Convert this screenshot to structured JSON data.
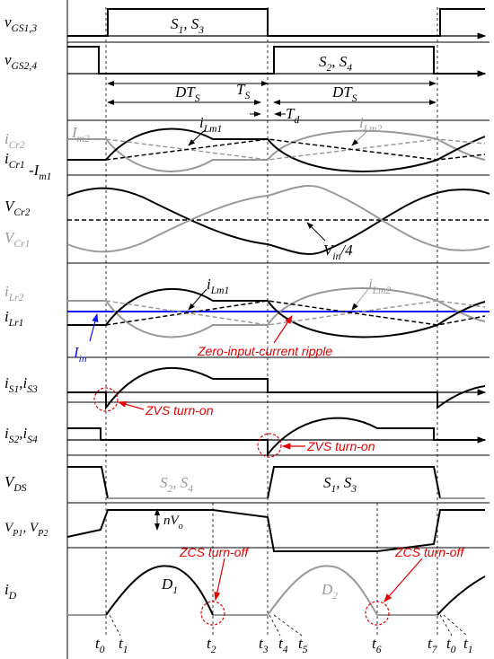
{
  "labels": {
    "vgs13": [
      "v",
      "GS1,3"
    ],
    "vgs24": [
      "v",
      "GS2,4"
    ],
    "s13_top": [
      "S",
      "1",
      ", S",
      "3"
    ],
    "s24_top": [
      "S",
      "2",
      ", S",
      "4"
    ],
    "dts_1": [
      "DT",
      "S"
    ],
    "ts": [
      "T",
      "S"
    ],
    "dts_2": [
      "DT",
      "S"
    ],
    "td": [
      "T",
      "d"
    ],
    "icr2": [
      "i",
      "Cr2"
    ],
    "im2": [
      "I",
      "m2"
    ],
    "icr1": [
      "i",
      "Cr1"
    ],
    "neg_im1": [
      "-I",
      "m1"
    ],
    "ilm1_a": [
      "i",
      "Lm1"
    ],
    "ilm2_a": [
      "i",
      "Lm2"
    ],
    "vcr2": [
      "V",
      "Cr2"
    ],
    "vcr1": [
      "V",
      "Cr1"
    ],
    "vin4": [
      "V",
      "in",
      "/4"
    ],
    "ilr2": [
      "i",
      "Lr2"
    ],
    "ilr1": [
      "i",
      "Lr1"
    ],
    "iin": [
      "I",
      "in"
    ],
    "ilm1_b": [
      "i",
      "Lm1"
    ],
    "ilm2_b": [
      "i",
      "Lm2"
    ],
    "ripple": [
      "Zero-input-current ripple"
    ],
    "is13": [
      "i",
      "S1",
      ",i",
      "S3"
    ],
    "zvs_1": [
      "ZVS turn-on"
    ],
    "is24": [
      "i",
      "S2",
      ",i",
      "S4"
    ],
    "zvs_2": [
      "ZVS turn-on"
    ],
    "vds": [
      "V",
      "DS"
    ],
    "s24_vds": [
      "S",
      "2",
      ", S",
      "4"
    ],
    "s13_vds": [
      "S",
      "1",
      ", S",
      "3"
    ],
    "vp": [
      "V",
      "P1",
      ", V",
      "P2"
    ],
    "nvo": [
      "nV",
      "o"
    ],
    "id": [
      "i",
      "D"
    ],
    "d1": [
      "D",
      "1"
    ],
    "d2": [
      "D",
      "2"
    ],
    "zcs_1": [
      "ZCS turn-off"
    ],
    "zcs_2": [
      "ZCS turn-off"
    ],
    "t0": [
      "t",
      "0"
    ],
    "t1": [
      "t",
      "1"
    ],
    "t2": [
      "t",
      "2"
    ],
    "t3": [
      "t",
      "3"
    ],
    "t4": [
      "t",
      "4"
    ],
    "t5": [
      "t",
      "5"
    ],
    "t6": [
      "t",
      "6"
    ],
    "t7": [
      "t",
      "7"
    ],
    "t0b": [
      "t",
      "0"
    ],
    "t1b": [
      "t",
      "1"
    ]
  }
}
